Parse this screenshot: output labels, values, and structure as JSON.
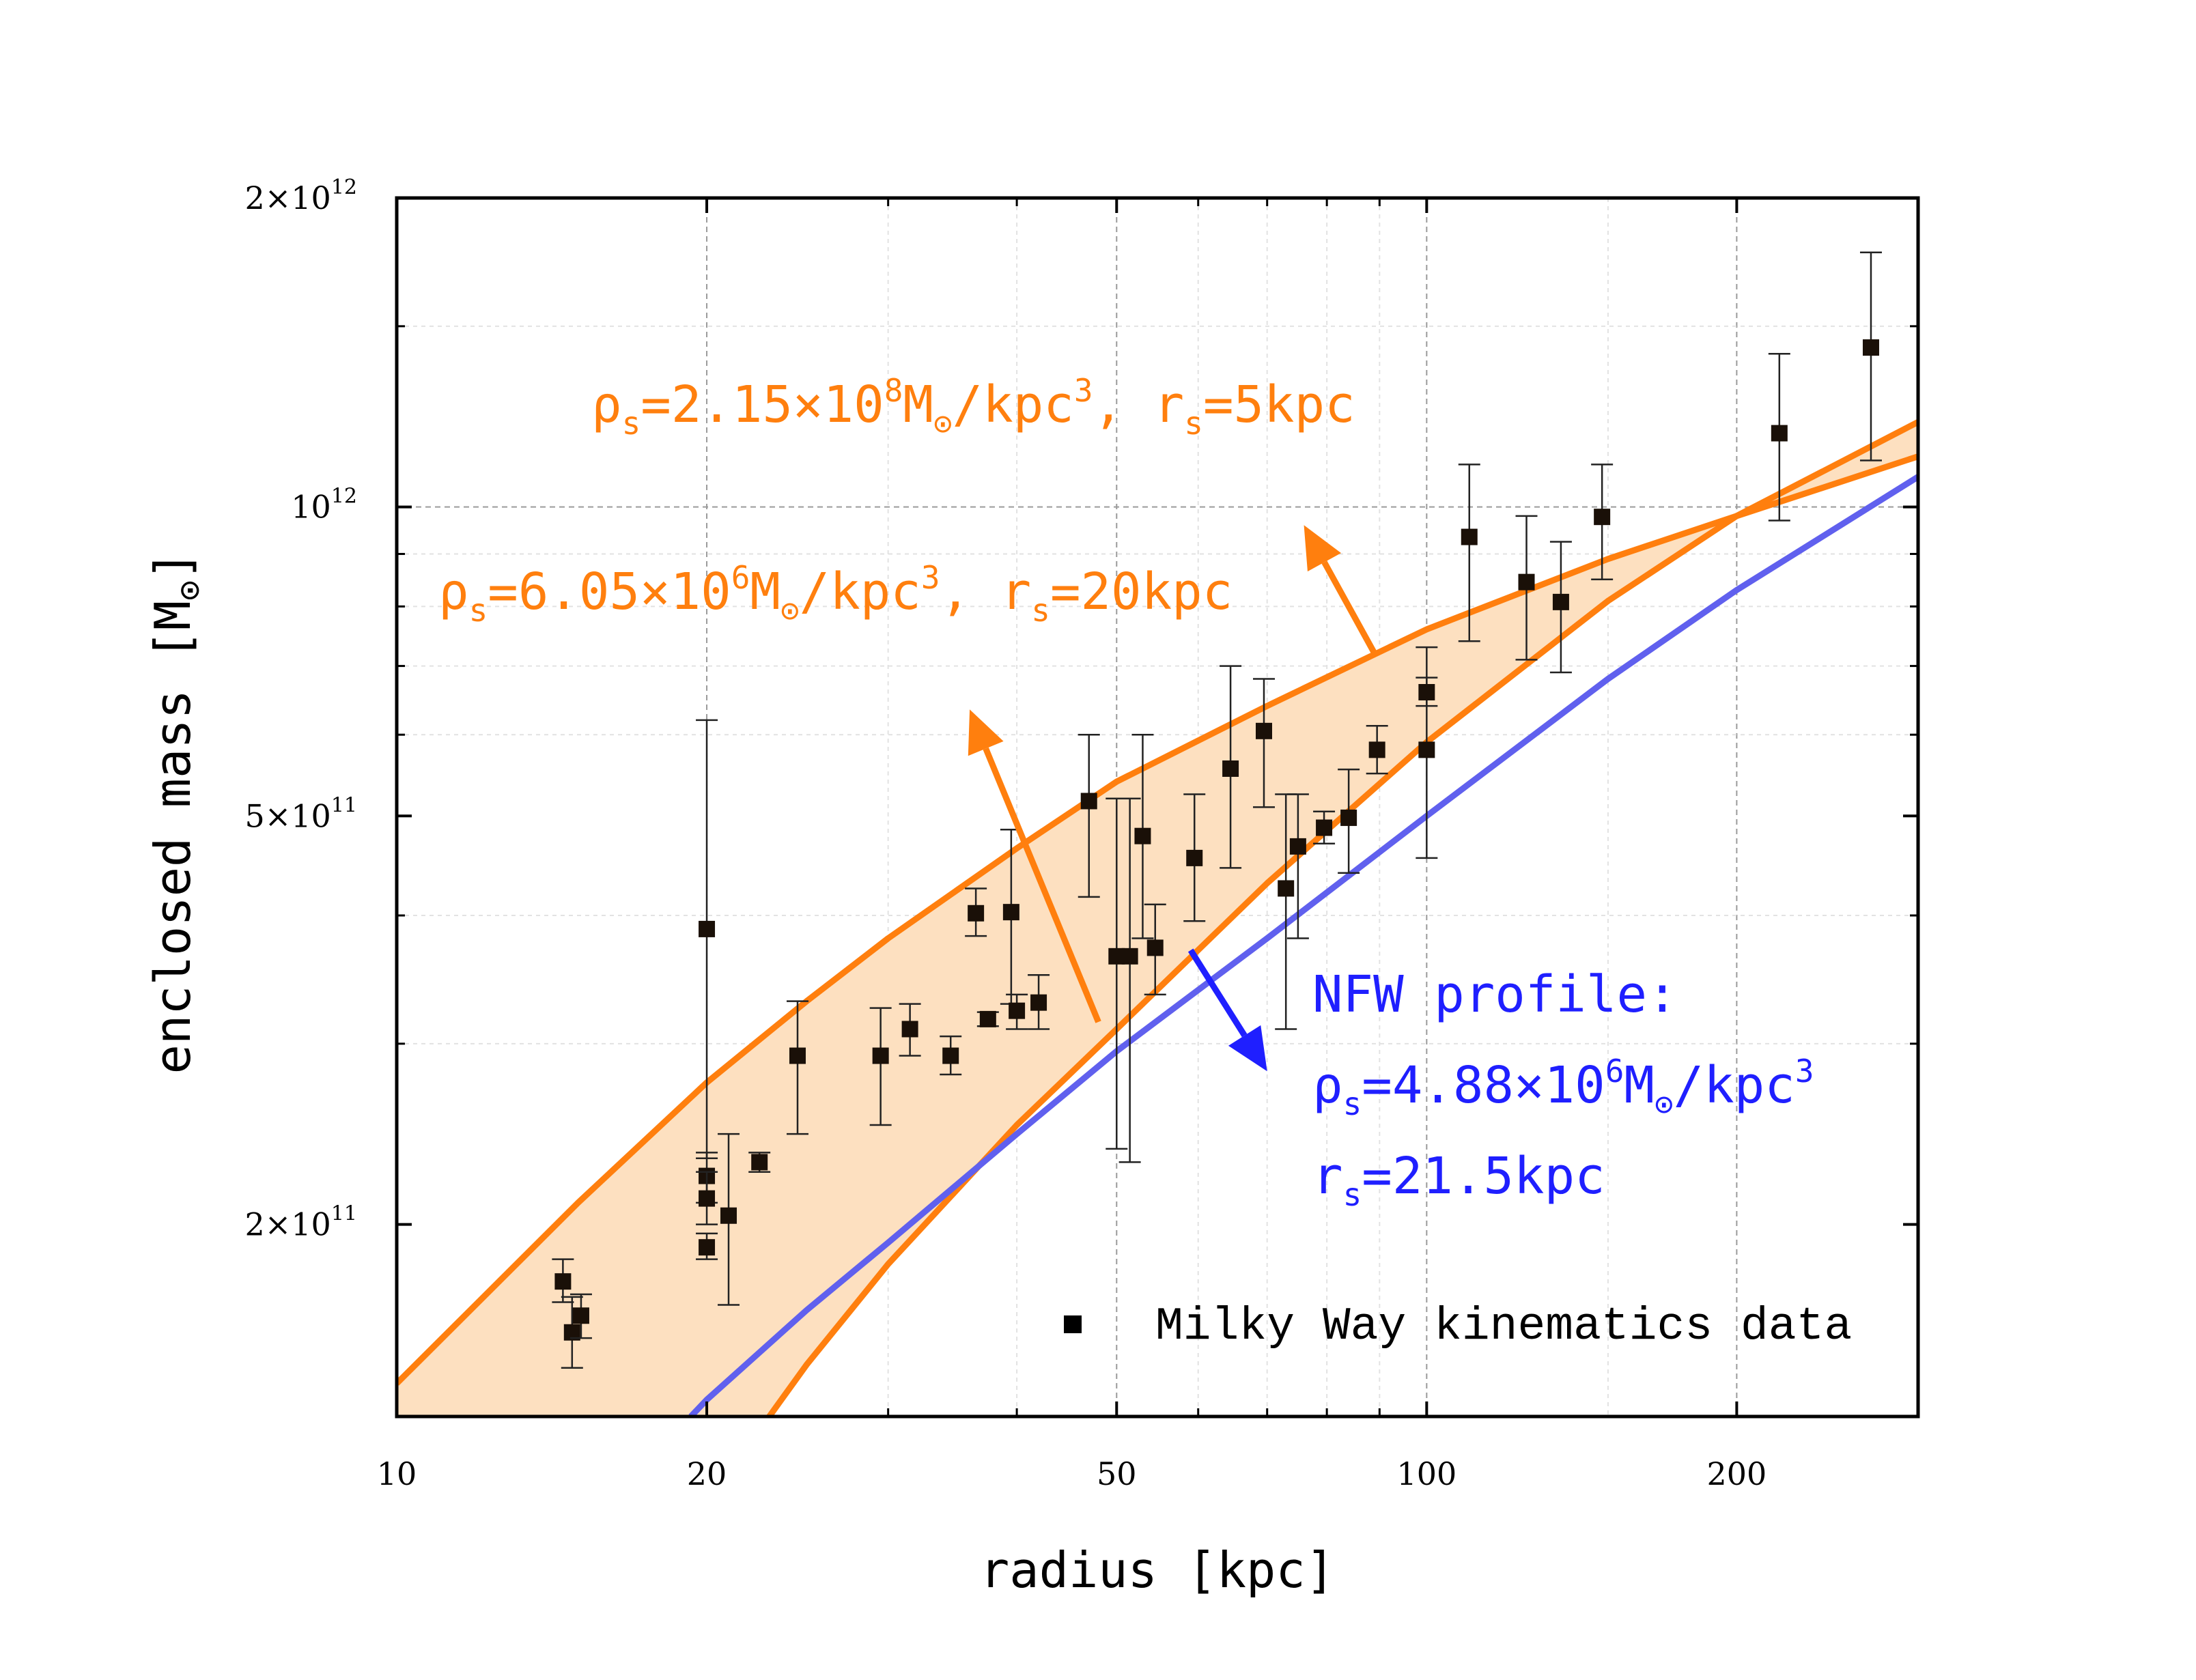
{
  "chart_data": {
    "type": "scatter",
    "x_scale": "log",
    "y_scale": "log",
    "xlim": [
      10,
      300
    ],
    "ylim": [
      130000000000,
      2000000000000
    ],
    "xlabel": "radius [kpc]",
    "ylabel": {
      "main": "enclosed mass [M",
      "sub": "⊙",
      "close": "]"
    },
    "x_ticks": [
      {
        "value": 10,
        "label": "10"
      },
      {
        "value": 20,
        "label": "20"
      },
      {
        "value": 50,
        "label": "50"
      },
      {
        "value": 100,
        "label": "100"
      },
      {
        "value": 200,
        "label": "200"
      }
    ],
    "x_gridlines": [
      20,
      50,
      100,
      200
    ],
    "y_ticks": [
      {
        "value": 2000000000000,
        "mant": "2×10",
        "exp": "12"
      },
      {
        "value": 1000000000000,
        "mant": "10",
        "exp": "12"
      },
      {
        "value": 500000000000,
        "mant": "5×10",
        "exp": "11"
      },
      {
        "value": 200000000000,
        "mant": "2×10",
        "exp": "11"
      }
    ],
    "y_gridlines": [
      1000000000000
    ],
    "legend": {
      "label": "Milky Way kinematics data",
      "position": "bottom-right"
    },
    "series": [
      {
        "name": "Milky Way kinematics data",
        "type": "scatter-errorbar",
        "color": "#000000",
        "points": [
          {
            "x": 14.5,
            "y": 176000000000,
            "lo": 168000000000,
            "hi": 185000000000
          },
          {
            "x": 14.8,
            "y": 157000000000,
            "lo": 145000000000,
            "hi": 170000000000
          },
          {
            "x": 15.1,
            "y": 163000000000,
            "lo": 155000000000,
            "hi": 171000000000
          },
          {
            "x": 20.0,
            "y": 388000000000,
            "lo": 232000000000,
            "hi": 620000000000
          },
          {
            "x": 20.0,
            "y": 223000000000,
            "lo": 210000000000,
            "hi": 235000000000
          },
          {
            "x": 20.0,
            "y": 212000000000,
            "lo": 200000000000,
            "hi": 225000000000
          },
          {
            "x": 20.0,
            "y": 190000000000,
            "lo": 185000000000,
            "hi": 196000000000
          },
          {
            "x": 21.0,
            "y": 204000000000,
            "lo": 167000000000,
            "hi": 245000000000
          },
          {
            "x": 22.5,
            "y": 230000000000,
            "lo": 225000000000,
            "hi": 235000000000
          },
          {
            "x": 24.5,
            "y": 292000000000,
            "lo": 245000000000,
            "hi": 330000000000
          },
          {
            "x": 29.5,
            "y": 292000000000,
            "lo": 250000000000,
            "hi": 325000000000
          },
          {
            "x": 31.5,
            "y": 310000000000,
            "lo": 292000000000,
            "hi": 328000000000
          },
          {
            "x": 34.5,
            "y": 292000000000,
            "lo": 280000000000,
            "hi": 305000000000
          },
          {
            "x": 36.5,
            "y": 402000000000,
            "lo": 382000000000,
            "hi": 425000000000
          },
          {
            "x": 37.5,
            "y": 317000000000,
            "lo": 312000000000,
            "hi": 322000000000
          },
          {
            "x": 39.5,
            "y": 403000000000,
            "lo": 328000000000,
            "hi": 485000000000
          },
          {
            "x": 40.0,
            "y": 323000000000,
            "lo": 310000000000,
            "hi": 335000000000
          },
          {
            "x": 42.0,
            "y": 329000000000,
            "lo": 310000000000,
            "hi": 350000000000
          },
          {
            "x": 47.0,
            "y": 517000000000,
            "lo": 417000000000,
            "hi": 600000000000
          },
          {
            "x": 50.0,
            "y": 365000000000,
            "lo": 237000000000,
            "hi": 520000000000
          },
          {
            "x": 51.5,
            "y": 365000000000,
            "lo": 230000000000,
            "hi": 520000000000
          },
          {
            "x": 53.0,
            "y": 478000000000,
            "lo": 380000000000,
            "hi": 600000000000
          },
          {
            "x": 54.5,
            "y": 372000000000,
            "lo": 335000000000,
            "hi": 410000000000
          },
          {
            "x": 59.5,
            "y": 455000000000,
            "lo": 395000000000,
            "hi": 525000000000
          },
          {
            "x": 64.5,
            "y": 556000000000,
            "lo": 445000000000,
            "hi": 700000000000
          },
          {
            "x": 69.5,
            "y": 605000000000,
            "lo": 510000000000,
            "hi": 680000000000
          },
          {
            "x": 73.0,
            "y": 425000000000,
            "lo": 310000000000,
            "hi": 525000000000
          },
          {
            "x": 75.0,
            "y": 467000000000,
            "lo": 380000000000,
            "hi": 525000000000
          },
          {
            "x": 79.5,
            "y": 487000000000,
            "lo": 470000000000,
            "hi": 505000000000
          },
          {
            "x": 84.0,
            "y": 498000000000,
            "lo": 440000000000,
            "hi": 555000000000
          },
          {
            "x": 89.5,
            "y": 580000000000,
            "lo": 550000000000,
            "hi": 612000000000
          },
          {
            "x": 100.0,
            "y": 580000000000,
            "lo": 455000000000,
            "hi": 730000000000
          },
          {
            "x": 100.0,
            "y": 660000000000,
            "lo": 640000000000,
            "hi": 682000000000
          },
          {
            "x": 110.0,
            "y": 935000000000,
            "lo": 740000000000,
            "hi": 1100000000000
          },
          {
            "x": 125.0,
            "y": 845000000000,
            "lo": 710000000000,
            "hi": 980000000000
          },
          {
            "x": 135.0,
            "y": 808000000000,
            "lo": 690000000000,
            "hi": 925000000000
          },
          {
            "x": 148.0,
            "y": 978000000000,
            "lo": 850000000000,
            "hi": 1100000000000
          },
          {
            "x": 220.0,
            "y": 1180000000000,
            "lo": 970000000000,
            "hi": 1410000000000
          },
          {
            "x": 270.0,
            "y": 1430000000000,
            "lo": 1110000000000,
            "hi": 1770000000000
          }
        ]
      },
      {
        "name": "rho_s=2.15e8, r_s=5kpc",
        "type": "line",
        "color": "#ff7f0e",
        "x": [
          10,
          15,
          20,
          25,
          30,
          40,
          50,
          70,
          100,
          150,
          200,
          300
        ],
        "y": [
          140000000000,
          210000000000,
          275000000000,
          330000000000,
          380000000000,
          465000000000,
          540000000000,
          640000000000,
          760000000000,
          890000000000,
          980000000000,
          1120000000000
        ]
      },
      {
        "name": "rho_s=6.05e6, r_s=20kpc",
        "type": "line",
        "color": "#ff7f0e",
        "x": [
          23,
          25,
          30,
          40,
          50,
          70,
          100,
          150,
          200,
          300
        ],
        "y": [
          130000000000,
          146000000000,
          183000000000,
          250000000000,
          310000000000,
          430000000000,
          590000000000,
          810000000000,
          980000000000,
          1210000000000
        ]
      },
      {
        "name": "NFW profile",
        "type": "line",
        "color": "#6060ee",
        "x": [
          19.3,
          20,
          25,
          30,
          40,
          50,
          70,
          100,
          150,
          200,
          300
        ],
        "y": [
          130000000000,
          135000000000,
          165000000000,
          192000000000,
          245000000000,
          295000000000,
          380000000000,
          500000000000,
          680000000000,
          830000000000,
          1070000000000
        ]
      }
    ],
    "band": {
      "between": [
        "rho_s=2.15e8, r_s=5kpc",
        "rho_s=6.05e6, r_s=20kpc"
      ],
      "color": "#fde0c0"
    },
    "annotations": [
      {
        "id": "ann1",
        "color": "#ff7f0e",
        "rho_base": "ρ",
        "rho_sub": "s",
        "eq": "=2.15×10",
        "exp": "8",
        "unit": "M",
        "sun": "⊙",
        "tail": "/kpc",
        "tail_exp": "3",
        "sep": ", r",
        "rs_sub": "s",
        "rs_val": "=5kpc",
        "arrow_from": [
          89,
          720000000000
        ],
        "arrow_to": [
          76,
          960000000000
        ]
      },
      {
        "id": "ann2",
        "color": "#ff7f0e",
        "rho_base": "ρ",
        "rho_sub": "s",
        "eq": "=6.05×10",
        "exp": "6",
        "unit": "M",
        "sun": "⊙",
        "tail": "/kpc",
        "tail_exp": "3",
        "sep": ", r",
        "rs_sub": "s",
        "rs_val": "=20kpc",
        "arrow_from": [
          48,
          315000000000
        ],
        "arrow_to": [
          36,
          635000000000
        ]
      },
      {
        "id": "ann3",
        "color": "#1f1fff",
        "line1": "NFW profile:",
        "rho_base": "ρ",
        "rho_sub": "s",
        "eq": "=4.88×10",
        "exp": "6",
        "unit": "M",
        "sun": "⊙",
        "tail": "/kpc",
        "tail_exp": "3",
        "rs_base": "r",
        "rs_sub": "s",
        "rs_val": "=21.5kpc",
        "arrow_from": [
          59,
          370000000000
        ],
        "arrow_to": [
          70,
          282000000000
        ]
      }
    ]
  }
}
